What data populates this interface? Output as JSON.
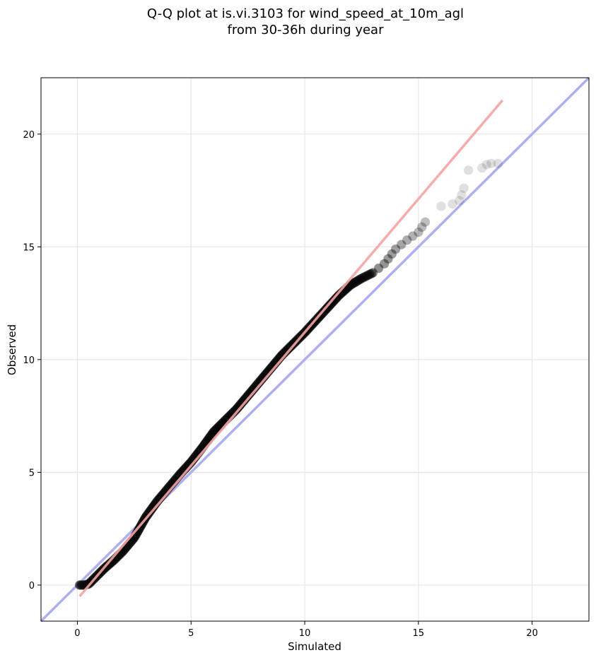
{
  "chart_data": {
    "type": "scatter",
    "title_line1": "Q-Q plot at is.vi.3103 for wind_speed_at_10m_agl",
    "title_line2": "from 30-36h during year",
    "xlabel": "Simulated",
    "ylabel": "Observed",
    "xlim": [
      -1.6,
      22.5
    ],
    "ylim": [
      -1.6,
      22.5
    ],
    "xticks": [
      0,
      5,
      10,
      15,
      20
    ],
    "yticks": [
      0,
      5,
      10,
      15,
      20
    ],
    "grid": true,
    "quantile_curve": [
      [
        0.1,
        0.0
      ],
      [
        0.3,
        0.0
      ],
      [
        0.5,
        0.05
      ],
      [
        0.8,
        0.35
      ],
      [
        1.2,
        0.75
      ],
      [
        1.6,
        1.1
      ],
      [
        2.0,
        1.5
      ],
      [
        2.5,
        2.1
      ],
      [
        3.0,
        3.0
      ],
      [
        3.5,
        3.7
      ],
      [
        4.0,
        4.3
      ],
      [
        4.5,
        4.9
      ],
      [
        5.0,
        5.45
      ],
      [
        5.5,
        6.1
      ],
      [
        6.0,
        6.8
      ],
      [
        7.0,
        7.8
      ],
      [
        8.0,
        9.0
      ],
      [
        9.0,
        10.2
      ],
      [
        10.0,
        11.2
      ],
      [
        11.0,
        12.3
      ],
      [
        11.5,
        12.85
      ],
      [
        12.0,
        13.3
      ],
      [
        12.5,
        13.6
      ],
      [
        13.0,
        13.85
      ],
      [
        13.5,
        14.25
      ],
      [
        14.0,
        14.9
      ],
      [
        14.5,
        15.3
      ],
      [
        15.0,
        15.65
      ],
      [
        15.3,
        16.1
      ],
      [
        15.5,
        16.35
      ]
    ],
    "outliers": [
      [
        16.0,
        16.8
      ],
      [
        16.5,
        16.9
      ],
      [
        16.8,
        17.05
      ],
      [
        16.9,
        17.3
      ],
      [
        17.0,
        17.6
      ],
      [
        17.2,
        18.4
      ],
      [
        17.8,
        18.5
      ],
      [
        18.0,
        18.65
      ],
      [
        18.2,
        18.7
      ],
      [
        18.5,
        18.7
      ]
    ],
    "fit_line": {
      "x": [
        0.1,
        18.7
      ],
      "y": [
        -0.5,
        21.5
      ],
      "color": "#f4a3a3"
    },
    "identity_line": {
      "color": "#a9abf3"
    },
    "point_color": "#000000"
  }
}
